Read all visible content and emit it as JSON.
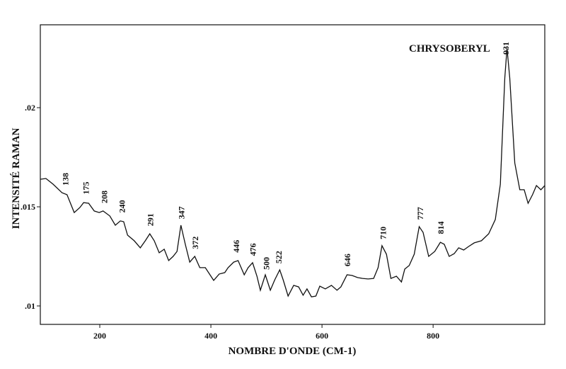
{
  "chart_data": {
    "type": "line",
    "annotation": "CHRYSOBERYL",
    "xlabel": "NOMBRE D'ONDE (CM-1)",
    "ylabel": "INTENSITÉ RAMAN",
    "xlim": [
      93,
      1001
    ],
    "ylim": [
      0.00907,
      0.02418
    ],
    "xticks": [
      200,
      400,
      600,
      800
    ],
    "yticks": [
      {
        "value": 0.01,
        "label": ".01"
      },
      {
        "value": 0.015,
        "label": ".015"
      },
      {
        "value": 0.02,
        "label": ".02"
      }
    ],
    "peaks": [
      138,
      175,
      208,
      240,
      291,
      347,
      372,
      446,
      476,
      500,
      522,
      646,
      710,
      777,
      814,
      931
    ],
    "series": [
      {
        "color": "#111111",
        "x": [
          93,
          103,
          116,
          132,
          141,
          154,
          164,
          171,
          180,
          190,
          199,
          206,
          218,
          228,
          237,
          243,
          250,
          262,
          273,
          282,
          290,
          298,
          307,
          316,
          324,
          332,
          339,
          346,
          354,
          362,
          371,
          380,
          390,
          405,
          415,
          425,
          431,
          441,
          449,
          460,
          467,
          475,
          483,
          489,
          498,
          507,
          515,
          524,
          530,
          539,
          549,
          558,
          566,
          573,
          581,
          589,
          596,
          606,
          617,
          627,
          634,
          645,
          654,
          664,
          673,
          683,
          693,
          701,
          708,
          716,
          724,
          734,
          743,
          749,
          757,
          766,
          775,
          782,
          792,
          803,
          813,
          820,
          829,
          838,
          846,
          855,
          864,
          874,
          887,
          900,
          912,
          921,
          929,
          933,
          938,
          947,
          956,
          964,
          971,
          979,
          986,
          994,
          1001
        ],
        "values": [
          0.01639,
          0.01643,
          0.01614,
          0.01571,
          0.01561,
          0.01471,
          0.01496,
          0.01521,
          0.01518,
          0.01479,
          0.01471,
          0.01479,
          0.01454,
          0.01407,
          0.01429,
          0.01425,
          0.01357,
          0.01329,
          0.01293,
          0.01329,
          0.01364,
          0.01329,
          0.01268,
          0.01286,
          0.01229,
          0.0125,
          0.01275,
          0.01407,
          0.01311,
          0.01221,
          0.0125,
          0.01193,
          0.01193,
          0.01129,
          0.01161,
          0.01168,
          0.01193,
          0.01221,
          0.01229,
          0.01157,
          0.01193,
          0.01218,
          0.0115,
          0.01079,
          0.01157,
          0.01079,
          0.01132,
          0.01182,
          0.01132,
          0.0105,
          0.01104,
          0.01096,
          0.01054,
          0.01086,
          0.01046,
          0.0105,
          0.011,
          0.01086,
          0.01104,
          0.01079,
          0.01096,
          0.01157,
          0.01154,
          0.01143,
          0.01139,
          0.01136,
          0.01139,
          0.01193,
          0.01304,
          0.01261,
          0.01139,
          0.0115,
          0.01121,
          0.01186,
          0.01204,
          0.01261,
          0.014,
          0.01371,
          0.0125,
          0.01275,
          0.01321,
          0.01311,
          0.0125,
          0.01264,
          0.01293,
          0.01282,
          0.013,
          0.01318,
          0.01329,
          0.01364,
          0.01436,
          0.01614,
          0.0215,
          0.023,
          0.0215,
          0.01721,
          0.01586,
          0.01586,
          0.01518,
          0.01561,
          0.01607,
          0.01586,
          0.01607
        ]
      }
    ]
  }
}
